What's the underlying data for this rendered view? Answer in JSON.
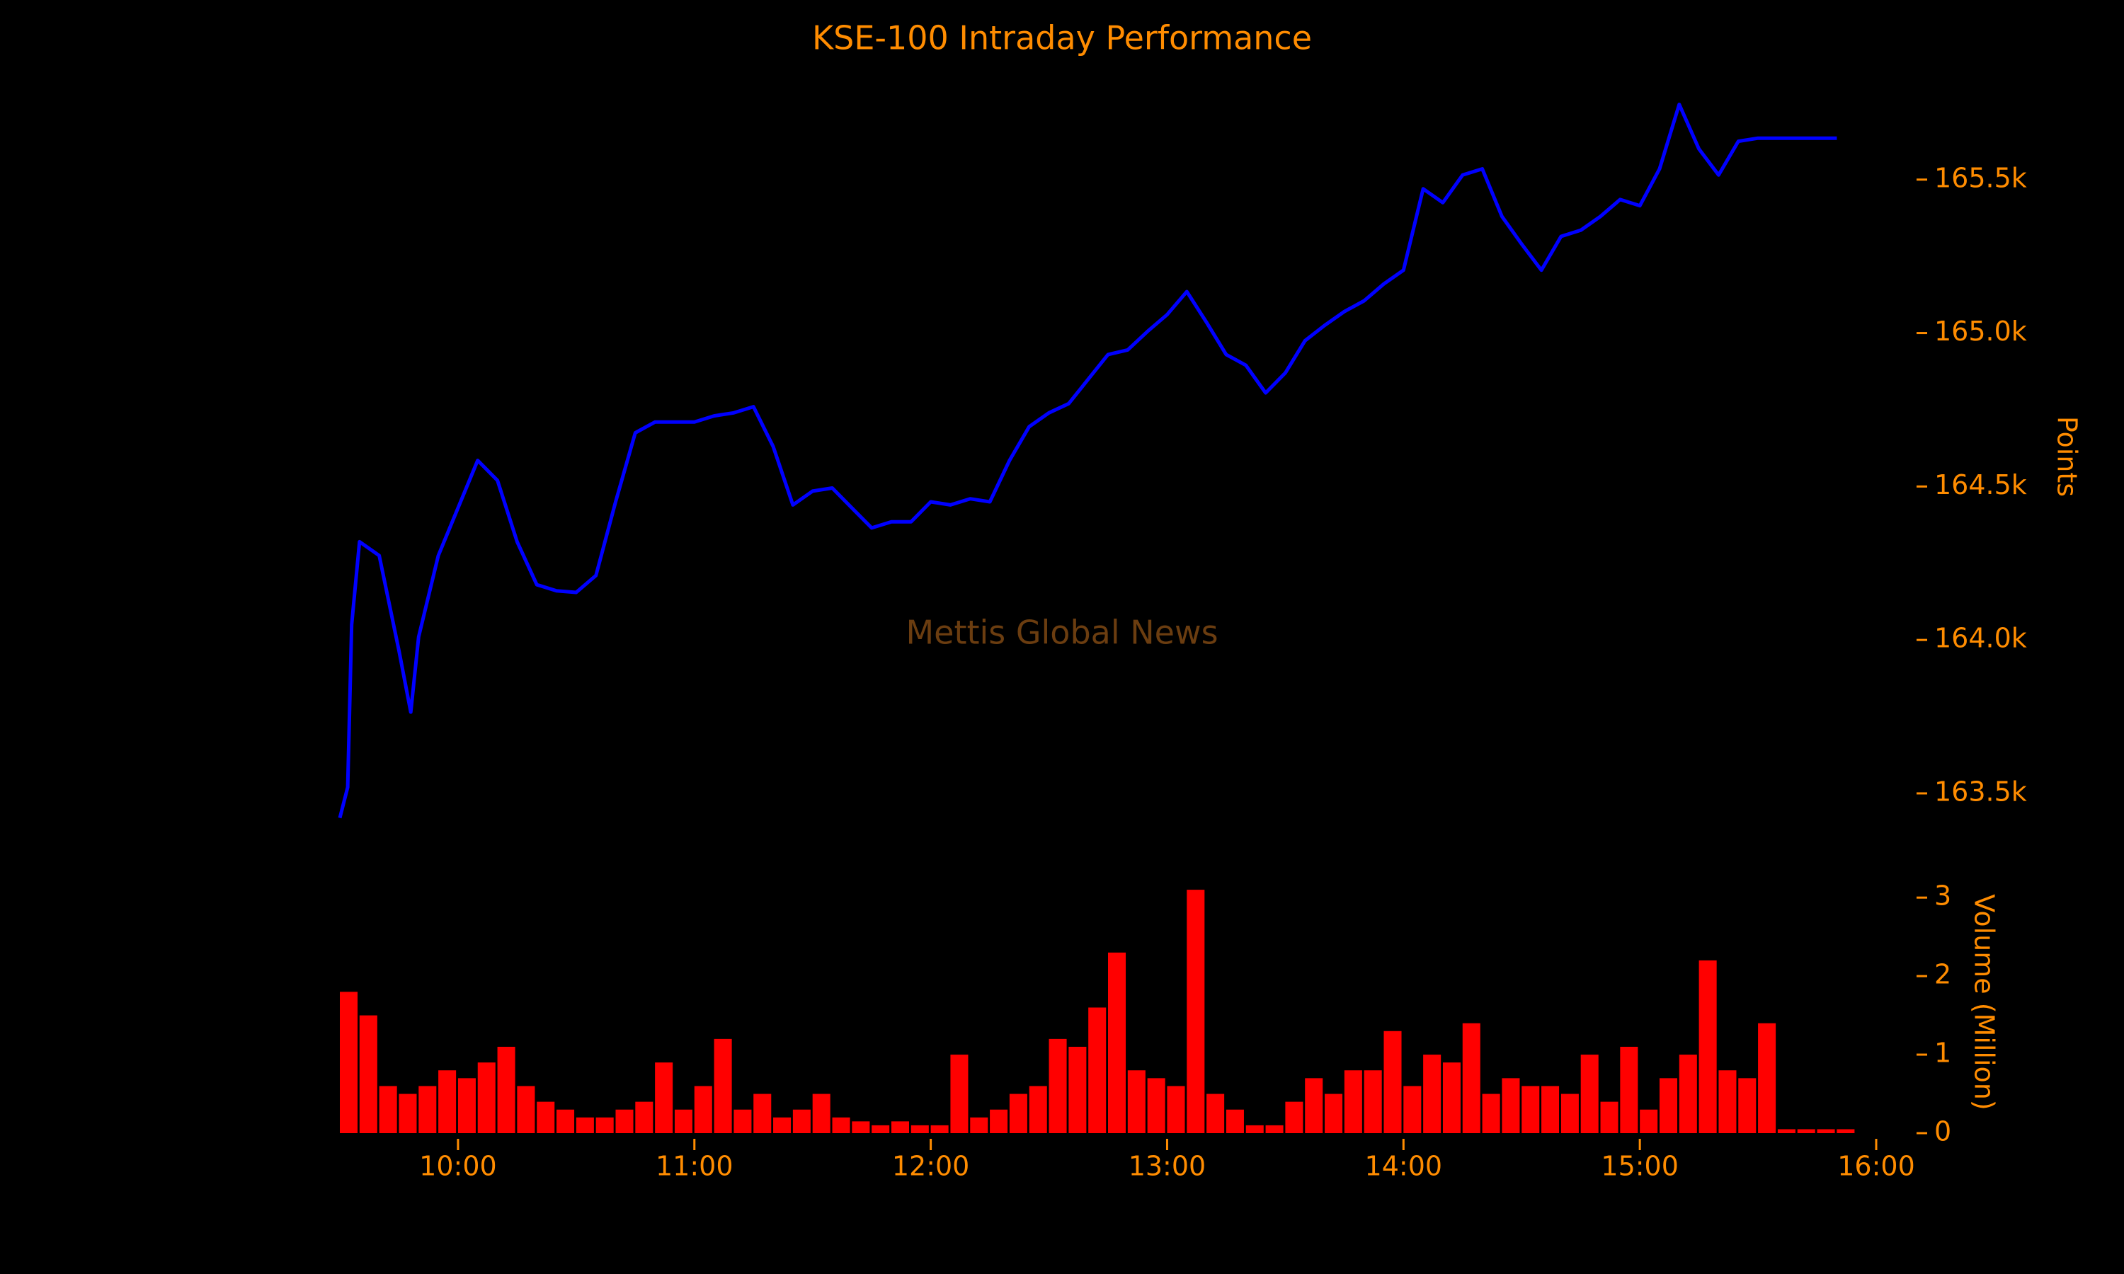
{
  "chart_data": [
    {
      "type": "line",
      "title": "KSE-100 Intraday Performance",
      "ylabel": "Points",
      "annotation": "Mettis Global News",
      "color": "#0000ff",
      "x": [
        "09:30",
        "09:32",
        "09:33",
        "09:35",
        "09:40",
        "09:45",
        "09:48",
        "09:50",
        "09:55",
        "10:00",
        "10:05",
        "10:10",
        "10:15",
        "10:20",
        "10:25",
        "10:30",
        "10:35",
        "10:40",
        "10:45",
        "10:50",
        "10:55",
        "11:00",
        "11:05",
        "11:10",
        "11:15",
        "11:20",
        "11:25",
        "11:30",
        "11:35",
        "11:40",
        "11:45",
        "11:50",
        "11:55",
        "12:00",
        "12:05",
        "12:10",
        "12:15",
        "12:20",
        "12:25",
        "12:30",
        "12:35",
        "12:40",
        "12:45",
        "12:50",
        "12:55",
        "13:00",
        "13:05",
        "13:10",
        "13:15",
        "13:20",
        "13:25",
        "13:30",
        "13:35",
        "13:40",
        "13:45",
        "13:50",
        "13:55",
        "14:00",
        "14:05",
        "14:10",
        "14:15",
        "14:20",
        "14:25",
        "14:30",
        "14:35",
        "14:40",
        "14:45",
        "14:50",
        "14:55",
        "15:00",
        "15:05",
        "15:10",
        "15:15",
        "15:20",
        "15:25",
        "15:30",
        "15:35",
        "15:40",
        "15:45",
        "15:50"
      ],
      "values": [
        163420,
        163520,
        164050,
        164320,
        164275,
        163965,
        163765,
        164010,
        164275,
        164430,
        164585,
        164520,
        164320,
        164180,
        164160,
        164155,
        164210,
        164450,
        164675,
        164710,
        164710,
        164710,
        164730,
        164740,
        164760,
        164630,
        164440,
        164485,
        164495,
        164430,
        164365,
        164385,
        164385,
        164450,
        164440,
        164460,
        164450,
        164585,
        164695,
        164740,
        164770,
        164850,
        164930,
        164945,
        165005,
        165060,
        165135,
        165035,
        164930,
        164895,
        164805,
        164870,
        164975,
        165025,
        165070,
        165105,
        165160,
        165205,
        165470,
        165425,
        165515,
        165535,
        165380,
        165290,
        165205,
        165315,
        165335,
        165380,
        165435,
        165415,
        165535,
        165745,
        165600,
        165515,
        165625,
        165635,
        165635,
        165635,
        165635,
        165635
      ],
      "xlim": [
        "09:30",
        "16:00"
      ],
      "ylim": [
        163350,
        165850
      ],
      "yticks": [
        {
          "value": 163500,
          "label": "163.5k"
        },
        {
          "value": 164000,
          "label": "164.0k"
        },
        {
          "value": 164500,
          "label": "164.5k"
        },
        {
          "value": 165000,
          "label": "165.0k"
        },
        {
          "value": 165500,
          "label": "165.5k"
        }
      ]
    },
    {
      "type": "bar",
      "ylabel": "Volume (Million)",
      "color": "#ff0000",
      "x": [
        "09:30",
        "09:35",
        "09:40",
        "09:45",
        "09:50",
        "09:55",
        "10:00",
        "10:05",
        "10:10",
        "10:15",
        "10:20",
        "10:25",
        "10:30",
        "10:35",
        "10:40",
        "10:45",
        "10:50",
        "10:55",
        "11:00",
        "11:05",
        "11:10",
        "11:15",
        "11:20",
        "11:25",
        "11:30",
        "11:35",
        "11:40",
        "11:45",
        "11:50",
        "11:55",
        "12:00",
        "12:05",
        "12:10",
        "12:15",
        "12:20",
        "12:25",
        "12:30",
        "12:35",
        "12:40",
        "12:45",
        "12:50",
        "12:55",
        "13:00",
        "13:05",
        "13:10",
        "13:15",
        "13:20",
        "13:25",
        "13:30",
        "13:35",
        "13:40",
        "13:45",
        "13:50",
        "13:55",
        "14:00",
        "14:05",
        "14:10",
        "14:15",
        "14:20",
        "14:25",
        "14:30",
        "14:35",
        "14:40",
        "14:45",
        "14:50",
        "14:55",
        "15:00",
        "15:05",
        "15:10",
        "15:15",
        "15:20",
        "15:25",
        "15:30",
        "15:35",
        "15:40",
        "15:45",
        "15:50"
      ],
      "values": [
        1.8,
        1.5,
        0.6,
        0.5,
        0.6,
        0.8,
        0.7,
        0.9,
        1.1,
        0.6,
        0.4,
        0.3,
        0.2,
        0.2,
        0.3,
        0.4,
        0.9,
        0.3,
        0.6,
        1.2,
        0.3,
        0.5,
        0.2,
        0.3,
        0.5,
        0.2,
        0.15,
        0.1,
        0.15,
        0.1,
        0.1,
        1.0,
        0.2,
        0.3,
        0.5,
        0.6,
        1.2,
        1.1,
        1.6,
        2.3,
        0.8,
        0.7,
        0.6,
        3.1,
        0.5,
        0.3,
        0.1,
        0.1,
        0.4,
        0.7,
        0.5,
        0.8,
        0.8,
        1.3,
        0.6,
        1.0,
        0.9,
        1.4,
        0.5,
        0.7,
        0.6,
        0.6,
        0.5,
        1.0,
        0.4,
        1.1,
        0.3,
        0.7,
        1.0,
        2.2,
        0.8,
        0.7,
        1.4,
        0.05,
        0.05,
        0.05,
        0.05
      ],
      "xlim": [
        "09:30",
        "16:00"
      ],
      "xticks": [
        "10:00",
        "11:00",
        "12:00",
        "13:00",
        "14:00",
        "15:00",
        "16:00"
      ],
      "ylim": [
        0,
        3.2
      ],
      "yticks": [
        0,
        1,
        2,
        3
      ]
    }
  ]
}
